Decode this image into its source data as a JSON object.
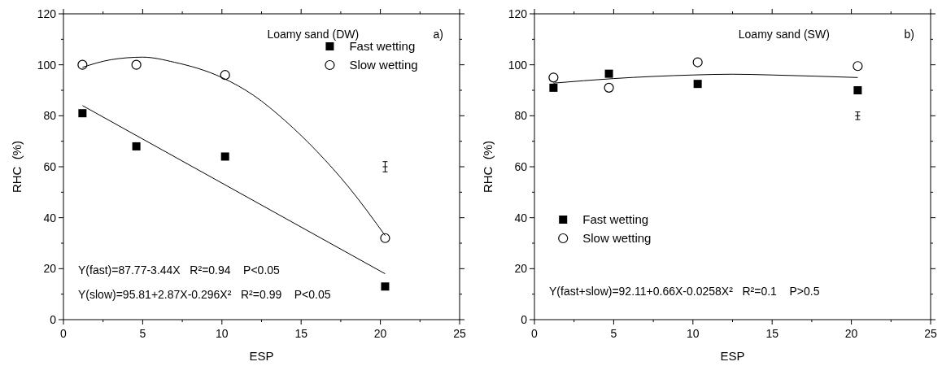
{
  "chart_data": [
    {
      "type": "scatter",
      "title": "Loamy sand (DW)",
      "xlabel": "ESP",
      "ylabel": "RHC  (%)",
      "xlim": [
        0,
        25
      ],
      "ylim": [
        0,
        120
      ],
      "xticks": [
        0,
        5,
        10,
        15,
        20,
        25
      ],
      "yticks": [
        0,
        20,
        40,
        60,
        80,
        100,
        120
      ],
      "grid": false,
      "legend": "top right",
      "annotations": [
        "a)",
        "Y(fast)=87.77-3.44X   R²=0.94    P<0.05",
        "Y(slow)=95.81+2.87X-0.296X²   R²=0.99    P<0.05"
      ],
      "series": [
        {
          "name": "Fast wetting",
          "marker": "square",
          "color": "#000000",
          "x": [
            1.2,
            4.6,
            10.2,
            20.3
          ],
          "values": [
            81,
            68,
            64,
            13
          ]
        },
        {
          "name": "Slow wetting",
          "marker": "circle",
          "color": "#000000",
          "x": [
            1.2,
            4.6,
            10.2,
            20.3
          ],
          "values": [
            100,
            100,
            96,
            32
          ]
        },
        {
          "type": "line",
          "marker": "none",
          "color": "#000000",
          "x": [
            1.2,
            20.3
          ],
          "values": [
            84,
            18
          ]
        },
        {
          "type": "line",
          "marker": "none",
          "color": "#000000",
          "x": [
            1.2,
            3,
            5,
            7,
            10,
            12,
            14,
            16,
            18,
            20.3
          ],
          "values": [
            99,
            102,
            103,
            101,
            95,
            88,
            78,
            66,
            52,
            33
          ]
        },
        {
          "marker": "cross",
          "color": "#000000",
          "x": [
            20.3
          ],
          "values": [
            60
          ],
          "errors": [
            2
          ]
        }
      ]
    },
    {
      "type": "scatter",
      "title": "Loamy sand (SW)",
      "xlabel": "ESP",
      "ylabel": "RHC  (%)",
      "xlim": [
        0,
        25
      ],
      "ylim": [
        0,
        120
      ],
      "xticks": [
        0,
        5,
        10,
        15,
        20,
        25
      ],
      "yticks": [
        0,
        20,
        40,
        60,
        80,
        100,
        120
      ],
      "grid": false,
      "legend": "left",
      "annotations": [
        "b)",
        "Y(fast+slow)=92.11+0.66X-0.0258X²   R²=0.1    P>0.5"
      ],
      "series": [
        {
          "name": "Fast wetting",
          "marker": "square",
          "color": "#000000",
          "x": [
            1.2,
            4.7,
            10.3,
            20.4
          ],
          "values": [
            91,
            96.5,
            92.5,
            90
          ]
        },
        {
          "name": "Slow wetting",
          "marker": "circle",
          "color": "#000000",
          "x": [
            1.2,
            4.7,
            10.3,
            20.4
          ],
          "values": [
            95,
            91,
            101,
            99.5
          ]
        },
        {
          "type": "line",
          "marker": "none",
          "color": "#000000",
          "x": [
            1.2,
            5,
            10,
            12.5,
            15,
            20.4
          ],
          "values": [
            92.8,
            94.6,
            96,
            96.3,
            96,
            95
          ]
        },
        {
          "marker": "cross",
          "color": "#000000",
          "x": [
            20.4
          ],
          "values": [
            80
          ],
          "errors": [
            1.5
          ]
        }
      ]
    }
  ]
}
